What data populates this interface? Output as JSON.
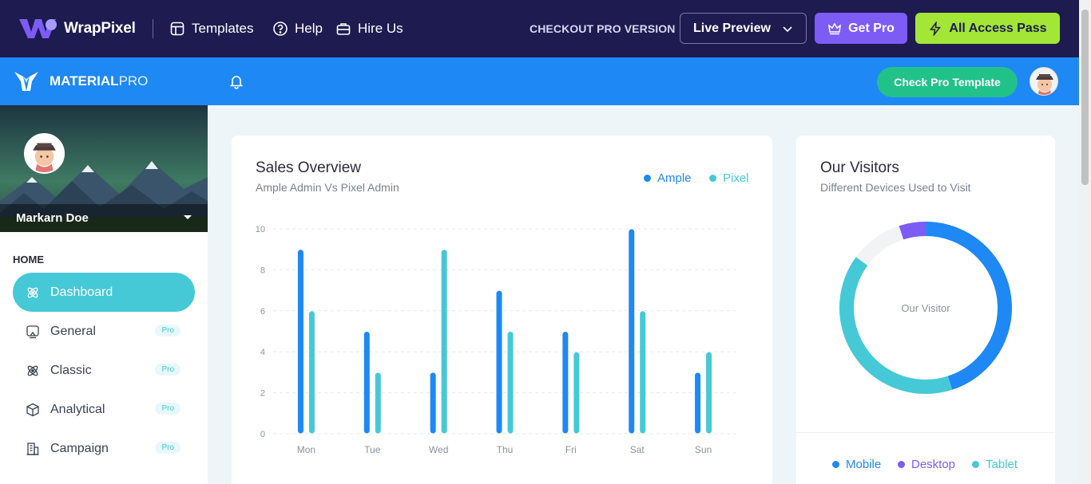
{
  "promo": {
    "brand": "WrapPixel",
    "links": [
      "Templates",
      "Help",
      "Hire Us"
    ],
    "checkout": "CHECKOUT PRO VERSION",
    "live_preview": "Live Preview",
    "get_pro": "Get Pro",
    "all_access": "All Access Pass"
  },
  "header": {
    "brand_bold": "MATERIAL",
    "brand_light": "PRO",
    "check_pro": "Check Pro Template"
  },
  "sidebar": {
    "profile_name": "Markarn Doe",
    "caption": "HOME",
    "items": [
      {
        "label": "Dashboard",
        "badge": ""
      },
      {
        "label": "General",
        "badge": "Pro"
      },
      {
        "label": "Classic",
        "badge": "Pro"
      },
      {
        "label": "Analytical",
        "badge": "Pro"
      },
      {
        "label": "Campaign",
        "badge": "Pro"
      }
    ]
  },
  "sales": {
    "title": "Sales Overview",
    "subtitle": "Ample Admin Vs Pixel Admin",
    "legend": [
      "Ample",
      "Pixel"
    ]
  },
  "visitors": {
    "title": "Our Visitors",
    "subtitle": "Different Devices Used to Visit",
    "center_label": "Our Visitor",
    "legend": [
      "Mobile",
      "Desktop",
      "Tablet"
    ]
  },
  "colors": {
    "ample": "#1e88f5",
    "pixel": "#45c9d7",
    "desktop": "#7c5cf5",
    "track": "#f1f3f5"
  },
  "chart_data": [
    {
      "type": "bar",
      "title": "Sales Overview",
      "categories": [
        "Mon",
        "Tue",
        "Wed",
        "Thu",
        "Fri",
        "Sat",
        "Sun"
      ],
      "series": [
        {
          "name": "Ample",
          "values": [
            9,
            5,
            3,
            7,
            5,
            10,
            3
          ]
        },
        {
          "name": "Pixel",
          "values": [
            6,
            3,
            9,
            5,
            4,
            6,
            4
          ]
        }
      ],
      "ylim": [
        0,
        10
      ],
      "yticks": [
        0,
        2,
        4,
        6,
        8,
        10
      ],
      "grid": true
    },
    {
      "type": "pie",
      "title": "Our Visitors",
      "labels": [
        "Mobile",
        "Tablet",
        "Desktop"
      ],
      "values": [
        45,
        40,
        5
      ]
    }
  ]
}
